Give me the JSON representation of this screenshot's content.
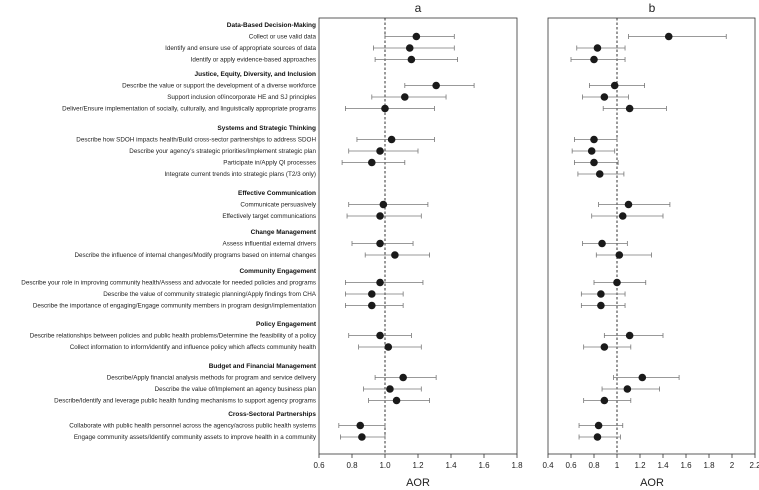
{
  "chart_data": {
    "type": "scatter",
    "title": "",
    "xlabel": "AOR",
    "reference_line": 1.0,
    "groups": [
      {
        "name": "Data-Based Decision-Making",
        "items": [
          {
            "label": "Collect or use valid data",
            "a": [
              1.19,
              1.0,
              1.42
            ],
            "b": [
              1.45,
              1.1,
              1.95
            ]
          },
          {
            "label": "Identify and ensure use of appropriate sources of data",
            "a": [
              1.15,
              0.93,
              1.42
            ],
            "b": [
              0.83,
              0.65,
              1.07
            ]
          },
          {
            "label": "Identify or apply evidence-based approaches",
            "a": [
              1.16,
              0.94,
              1.44
            ],
            "b": [
              0.8,
              0.6,
              1.07
            ]
          }
        ]
      },
      {
        "name": "Justice, Equity, Diversity, and Inclusion",
        "items": [
          {
            "label": "Describe the value or support the development of a diverse workforce",
            "a": [
              1.31,
              1.12,
              1.54
            ],
            "b": [
              0.98,
              0.76,
              1.24
            ]
          },
          {
            "label": "Support inclusion of/incorporate HE and SJ principles",
            "a": [
              1.12,
              0.92,
              1.37
            ],
            "b": [
              0.89,
              0.7,
              1.1
            ]
          },
          {
            "label": "Deliver/Ensure implementation of socially, culturally, and linguistically appropriate programs",
            "a": [
              1.0,
              0.76,
              1.3
            ],
            "b": [
              1.11,
              0.88,
              1.43
            ]
          }
        ]
      },
      {
        "name": "Systems and Strategic Thinking",
        "items": [
          {
            "label": "Describe how SDOH impacts health/Build cross-sector partnerships to address SDOH",
            "a": [
              1.04,
              0.83,
              1.3
            ],
            "b": [
              0.8,
              0.63,
              1.0
            ]
          },
          {
            "label": "Describe your agency's strategic priorities/Implement strategic plan",
            "a": [
              0.97,
              0.78,
              1.2
            ],
            "b": [
              0.78,
              0.61,
              0.98
            ]
          },
          {
            "label": "Participate in/Apply QI processes",
            "a": [
              0.92,
              0.74,
              1.12
            ],
            "b": [
              0.8,
              0.63,
              1.01
            ]
          },
          {
            "label": "Integrate current trends into strategic plans (T2/3 only)",
            "a": null,
            "b": [
              0.85,
              0.66,
              1.06
            ]
          }
        ]
      },
      {
        "name": "Effective Communication",
        "items": [
          {
            "label": "Communicate persuasively",
            "a": [
              0.99,
              0.78,
              1.26
            ],
            "b": [
              1.1,
              0.84,
              1.46
            ]
          },
          {
            "label": "Effectively target communications",
            "a": [
              0.97,
              0.77,
              1.22
            ],
            "b": [
              1.05,
              0.78,
              1.4
            ]
          }
        ]
      },
      {
        "name": "Change Management",
        "items": [
          {
            "label": "Assess influential external drivers",
            "a": [
              0.97,
              0.8,
              1.17
            ],
            "b": [
              0.87,
              0.7,
              1.09
            ]
          },
          {
            "label": "Describe the influence of internal changes/Modify programs based on internal changes",
            "a": [
              1.06,
              0.88,
              1.27
            ],
            "b": [
              1.02,
              0.82,
              1.3
            ]
          }
        ]
      },
      {
        "name": "Community Engagement",
        "items": [
          {
            "label": "Describe your role in improving community health/Assess and advocate for needed policies and programs",
            "a": [
              0.97,
              0.76,
              1.23
            ],
            "b": [
              1.0,
              0.8,
              1.25
            ]
          },
          {
            "label": "Describe the value of community strategic planning/Apply findings from CHA",
            "a": [
              0.92,
              0.76,
              1.11
            ],
            "b": [
              0.86,
              0.69,
              1.07
            ]
          },
          {
            "label": "Describe the importance of engaging/Engage community members in program design/implementation",
            "a": [
              0.92,
              0.76,
              1.11
            ],
            "b": [
              0.86,
              0.69,
              1.07
            ]
          }
        ]
      },
      {
        "name": "Policy Engagement",
        "items": [
          {
            "label": "Describe relationships between policies and public health problems/Determine the feasibility of a policy",
            "a": [
              0.97,
              0.78,
              1.16
            ],
            "b": [
              1.11,
              0.89,
              1.4
            ]
          },
          {
            "label": "Collect information to inform/identify and influence policy which affects community health",
            "a": [
              1.02,
              0.84,
              1.22
            ],
            "b": [
              0.89,
              0.71,
              1.12
            ]
          }
        ]
      },
      {
        "name": "Budget and Financial Management",
        "items": [
          {
            "label": "Describe/Apply financial analysis methods for program and service delivery",
            "a": [
              1.11,
              0.94,
              1.31
            ],
            "b": [
              1.22,
              0.97,
              1.54
            ]
          },
          {
            "label": "Describe the value of/Implement an agency business plan",
            "a": [
              1.03,
              0.87,
              1.22
            ],
            "b": [
              1.09,
              0.87,
              1.37
            ]
          },
          {
            "label": "Describe/Identify and leverage public health funding mechanisms to support agency programs",
            "a": [
              1.07,
              0.9,
              1.27
            ],
            "b": [
              0.89,
              0.71,
              1.12
            ]
          }
        ]
      },
      {
        "name": "Cross-Sectoral Partnerships",
        "items": [
          {
            "label": "Collaborate with public health personnel across the agency/across public health systems",
            "a": [
              0.85,
              0.72,
              1.0
            ],
            "b": [
              0.84,
              0.67,
              1.05
            ]
          },
          {
            "label": "Engage community assets/Identify community assets to improve health in a community",
            "a": [
              0.86,
              0.73,
              1.0
            ],
            "b": [
              0.83,
              0.67,
              1.03
            ]
          }
        ]
      }
    ],
    "panels": [
      {
        "label": "a",
        "key": "a",
        "xlim": [
          0.6,
          1.8
        ],
        "ticks": [
          "0.6",
          "0.8",
          "1.0",
          "1.2",
          "1.4",
          "1.6",
          "1.8"
        ]
      },
      {
        "label": "b",
        "key": "b",
        "xlim": [
          0.4,
          2.2
        ],
        "ticks": [
          "0.4",
          "0.6",
          "0.8",
          "1",
          "1.2",
          "1.4",
          "1.6",
          "1.8",
          "2",
          "2.2"
        ]
      }
    ]
  }
}
